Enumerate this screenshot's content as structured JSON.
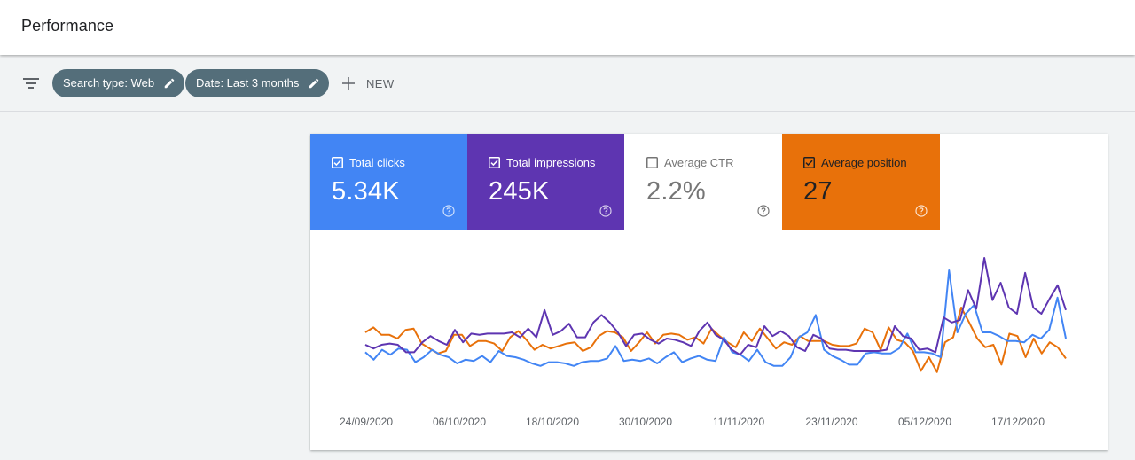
{
  "header": {
    "title": "Performance"
  },
  "filters": {
    "chips": [
      {
        "label": "Search type: Web"
      },
      {
        "label": "Date: Last 3 months"
      }
    ],
    "new_label": "NEW"
  },
  "metrics": [
    {
      "label": "Total clicks",
      "value": "5.34K",
      "checked": true,
      "color": "#4285f4"
    },
    {
      "label": "Total impressions",
      "value": "245K",
      "checked": true,
      "color": "#5e35b1"
    },
    {
      "label": "Average CTR",
      "value": "2.2%",
      "checked": false,
      "color": "#00897b"
    },
    {
      "label": "Average position",
      "value": "27",
      "checked": true,
      "color": "#e8710a"
    }
  ],
  "chart_data": {
    "type": "line",
    "x_tick_labels": [
      "24/09/2020",
      "06/10/2020",
      "18/10/2020",
      "30/10/2020",
      "11/11/2020",
      "23/11/2020",
      "05/12/2020",
      "17/12/2020"
    ],
    "y_axis_visible": false,
    "grid": false,
    "series": [
      {
        "name": "Total clicks",
        "color": "#4285f4",
        "values": [
          0.24,
          0.18,
          0.26,
          0.22,
          0.27,
          0.26,
          0.16,
          0.2,
          0.26,
          0.22,
          0.2,
          0.15,
          0.18,
          0.17,
          0.21,
          0.16,
          0.25,
          0.21,
          0.2,
          0.18,
          0.15,
          0.13,
          0.16,
          0.16,
          0.15,
          0.13,
          0.16,
          0.17,
          0.17,
          0.19,
          0.29,
          0.17,
          0.18,
          0.17,
          0.19,
          0.15,
          0.2,
          0.24,
          0.16,
          0.19,
          0.21,
          0.18,
          0.17,
          0.36,
          0.24,
          0.22,
          0.17,
          0.26,
          0.16,
          0.13,
          0.13,
          0.2,
          0.36,
          0.4,
          0.54,
          0.26,
          0.21,
          0.18,
          0.14,
          0.14,
          0.23,
          0.24,
          0.23,
          0.23,
          0.27,
          0.39,
          0.24,
          0.24,
          0.23,
          0.2,
          0.9,
          0.4,
          0.55,
          0.62,
          0.4,
          0.4,
          0.37,
          0.33,
          0.33,
          0.32,
          0.38,
          0.35,
          0.42,
          0.68,
          0.35
        ]
      },
      {
        "name": "Total impressions",
        "color": "#5e35b1",
        "values": [
          0.3,
          0.27,
          0.3,
          0.31,
          0.3,
          0.24,
          0.24,
          0.32,
          0.37,
          0.33,
          0.3,
          0.42,
          0.32,
          0.39,
          0.38,
          0.39,
          0.39,
          0.39,
          0.4,
          0.36,
          0.43,
          0.36,
          0.58,
          0.38,
          0.41,
          0.47,
          0.36,
          0.36,
          0.48,
          0.54,
          0.48,
          0.4,
          0.29,
          0.38,
          0.39,
          0.34,
          0.31,
          0.35,
          0.34,
          0.32,
          0.29,
          0.41,
          0.48,
          0.38,
          0.34,
          0.26,
          0.22,
          0.3,
          0.28,
          0.45,
          0.37,
          0.41,
          0.37,
          0.28,
          0.25,
          0.38,
          0.35,
          0.27,
          0.26,
          0.26,
          0.25,
          0.25,
          0.25,
          0.25,
          0.26,
          0.45,
          0.37,
          0.35,
          0.26,
          0.27,
          0.24,
          0.52,
          0.48,
          0.5,
          0.74,
          0.59,
          1.0,
          0.66,
          0.8,
          0.6,
          0.55,
          0.88,
          0.6,
          0.55,
          0.67,
          0.78,
          0.58
        ]
      },
      {
        "name": "Average position",
        "color": "#e8710a",
        "values": [
          0.4,
          0.44,
          0.38,
          0.38,
          0.35,
          0.42,
          0.43,
          0.31,
          0.27,
          0.23,
          0.25,
          0.38,
          0.38,
          0.29,
          0.33,
          0.33,
          0.31,
          0.25,
          0.36,
          0.41,
          0.34,
          0.26,
          0.3,
          0.27,
          0.29,
          0.31,
          0.32,
          0.25,
          0.28,
          0.37,
          0.41,
          0.4,
          0.36,
          0.25,
          0.32,
          0.4,
          0.31,
          0.38,
          0.39,
          0.38,
          0.34,
          0.36,
          0.31,
          0.43,
          0.37,
          0.32,
          0.28,
          0.4,
          0.33,
          0.43,
          0.35,
          0.27,
          0.32,
          0.3,
          0.37,
          0.33,
          0.33,
          0.33,
          0.3,
          0.29,
          0.29,
          0.31,
          0.43,
          0.4,
          0.26,
          0.44,
          0.34,
          0.32,
          0.25,
          0.09,
          0.2,
          0.08,
          0.32,
          0.36,
          0.6,
          0.48,
          0.35,
          0.28,
          0.3,
          0.14,
          0.39,
          0.37,
          0.2,
          0.35,
          0.23,
          0.32,
          0.28,
          0.19
        ]
      }
    ]
  }
}
